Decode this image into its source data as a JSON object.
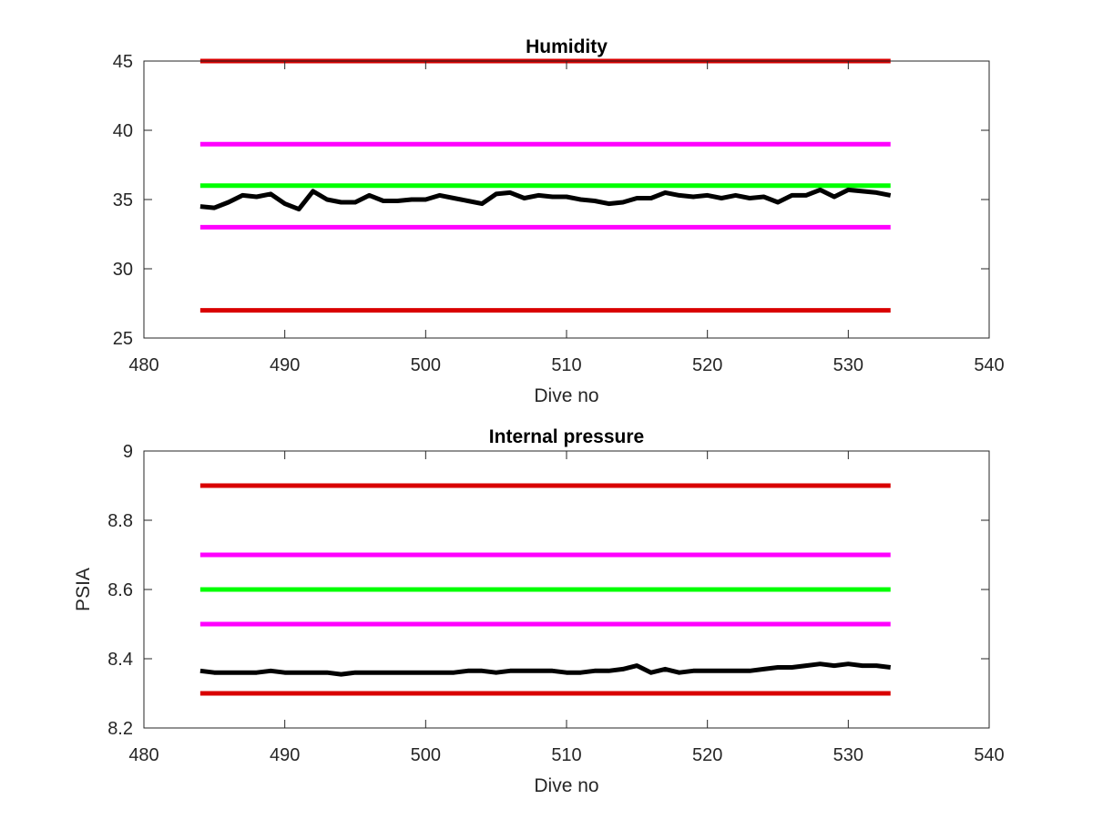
{
  "colors": {
    "red": "#d90000",
    "magenta": "#ff00ff",
    "green": "#00ff00",
    "black": "#000000"
  },
  "chart_data": [
    {
      "type": "line",
      "title": "Humidity",
      "xlabel": "Dive no",
      "ylabel": "",
      "xlim": [
        480,
        540
      ],
      "ylim": [
        25,
        45
      ],
      "xticks": [
        480,
        490,
        500,
        510,
        520,
        530,
        540
      ],
      "yticks": [
        25,
        30,
        35,
        40,
        45
      ],
      "grid": false,
      "reference_lines": [
        {
          "y": 45,
          "x_range": [
            484,
            533
          ],
          "color": "red"
        },
        {
          "y": 39,
          "x_range": [
            484,
            533
          ],
          "color": "magenta"
        },
        {
          "y": 36,
          "x_range": [
            484,
            533
          ],
          "color": "green"
        },
        {
          "y": 33,
          "x_range": [
            484,
            533
          ],
          "color": "magenta"
        },
        {
          "y": 27,
          "x_range": [
            484,
            533
          ],
          "color": "red"
        }
      ],
      "series": [
        {
          "color": "black",
          "x": [
            484,
            485,
            486,
            487,
            488,
            489,
            490,
            491,
            492,
            493,
            494,
            495,
            496,
            497,
            498,
            499,
            500,
            501,
            502,
            503,
            504,
            505,
            506,
            507,
            508,
            509,
            510,
            511,
            512,
            513,
            514,
            515,
            516,
            517,
            518,
            519,
            520,
            521,
            522,
            523,
            524,
            525,
            526,
            527,
            528,
            529,
            530,
            531,
            532,
            533
          ],
          "values": [
            34.5,
            34.4,
            34.8,
            35.3,
            35.2,
            35.4,
            34.7,
            34.3,
            35.6,
            35.0,
            34.8,
            34.8,
            35.3,
            34.9,
            34.9,
            35.0,
            35.0,
            35.3,
            35.1,
            34.9,
            34.7,
            35.4,
            35.5,
            35.1,
            35.3,
            35.2,
            35.2,
            35.0,
            34.9,
            34.7,
            34.8,
            35.1,
            35.1,
            35.5,
            35.3,
            35.2,
            35.3,
            35.1,
            35.3,
            35.1,
            35.2,
            34.8,
            35.3,
            35.3,
            35.7,
            35.2,
            35.7,
            35.6,
            35.5,
            35.3
          ]
        }
      ]
    },
    {
      "type": "line",
      "title": "Internal pressure",
      "xlabel": "Dive no",
      "ylabel": "PSIA",
      "xlim": [
        480,
        540
      ],
      "ylim": [
        8.2,
        9
      ],
      "xticks": [
        480,
        490,
        500,
        510,
        520,
        530,
        540
      ],
      "yticks": [
        8.2,
        8.4,
        8.6,
        8.8,
        9
      ],
      "grid": false,
      "reference_lines": [
        {
          "y": 8.9,
          "x_range": [
            484,
            533
          ],
          "color": "red"
        },
        {
          "y": 8.7,
          "x_range": [
            484,
            533
          ],
          "color": "magenta"
        },
        {
          "y": 8.6,
          "x_range": [
            484,
            533
          ],
          "color": "green"
        },
        {
          "y": 8.5,
          "x_range": [
            484,
            533
          ],
          "color": "magenta"
        },
        {
          "y": 8.3,
          "x_range": [
            484,
            533
          ],
          "color": "red"
        }
      ],
      "series": [
        {
          "color": "black",
          "x": [
            484,
            485,
            486,
            487,
            488,
            489,
            490,
            491,
            492,
            493,
            494,
            495,
            496,
            497,
            498,
            499,
            500,
            501,
            502,
            503,
            504,
            505,
            506,
            507,
            508,
            509,
            510,
            511,
            512,
            513,
            514,
            515,
            516,
            517,
            518,
            519,
            520,
            521,
            522,
            523,
            524,
            525,
            526,
            527,
            528,
            529,
            530,
            531,
            532,
            533
          ],
          "values": [
            8.365,
            8.36,
            8.36,
            8.36,
            8.36,
            8.365,
            8.36,
            8.36,
            8.36,
            8.36,
            8.355,
            8.36,
            8.36,
            8.36,
            8.36,
            8.36,
            8.36,
            8.36,
            8.36,
            8.365,
            8.365,
            8.36,
            8.365,
            8.365,
            8.365,
            8.365,
            8.36,
            8.36,
            8.365,
            8.365,
            8.37,
            8.38,
            8.36,
            8.37,
            8.36,
            8.365,
            8.365,
            8.365,
            8.365,
            8.365,
            8.37,
            8.375,
            8.375,
            8.38,
            8.385,
            8.38,
            8.385,
            8.38,
            8.38,
            8.375
          ]
        }
      ]
    }
  ]
}
